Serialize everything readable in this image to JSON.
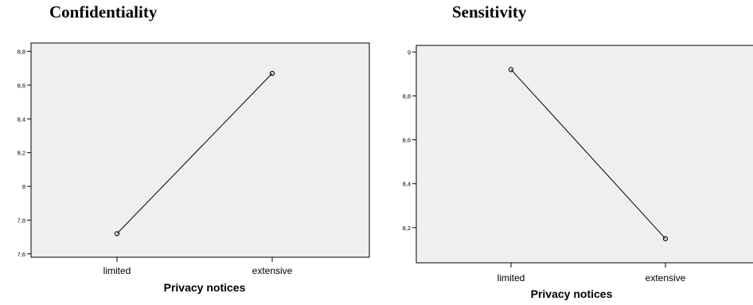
{
  "chart_data": [
    {
      "type": "line",
      "title": "Confidentiality",
      "xlabel": "Privacy notices",
      "ylabel": "",
      "categories": [
        "limited",
        "extensive"
      ],
      "series": [
        {
          "values": [
            7.72,
            8.67
          ]
        }
      ],
      "ylim": [
        7.58,
        8.85
      ],
      "yticks": [
        7.6,
        7.8,
        8,
        8.2,
        8.4,
        8.6,
        8.8
      ],
      "ytick_labels": [
        "7,6",
        "7,8",
        "8",
        "8,2",
        "8,4",
        "8,6",
        "8,8"
      ],
      "grid": false,
      "background": "#efefef",
      "line_color": "#000000"
    },
    {
      "type": "line",
      "title": "Sensitivity",
      "xlabel": "Privacy notices",
      "ylabel": "",
      "categories": [
        "limited",
        "extensive"
      ],
      "series": [
        {
          "values": [
            8.92,
            8.15
          ]
        }
      ],
      "ylim": [
        8.04,
        9.03
      ],
      "yticks": [
        8.2,
        8.4,
        8.6,
        8.8,
        9
      ],
      "ytick_labels": [
        "8,2",
        "8,4",
        "8,6",
        "8,8",
        "9"
      ],
      "grid": false,
      "background": "#efefef",
      "line_color": "#000000"
    }
  ]
}
